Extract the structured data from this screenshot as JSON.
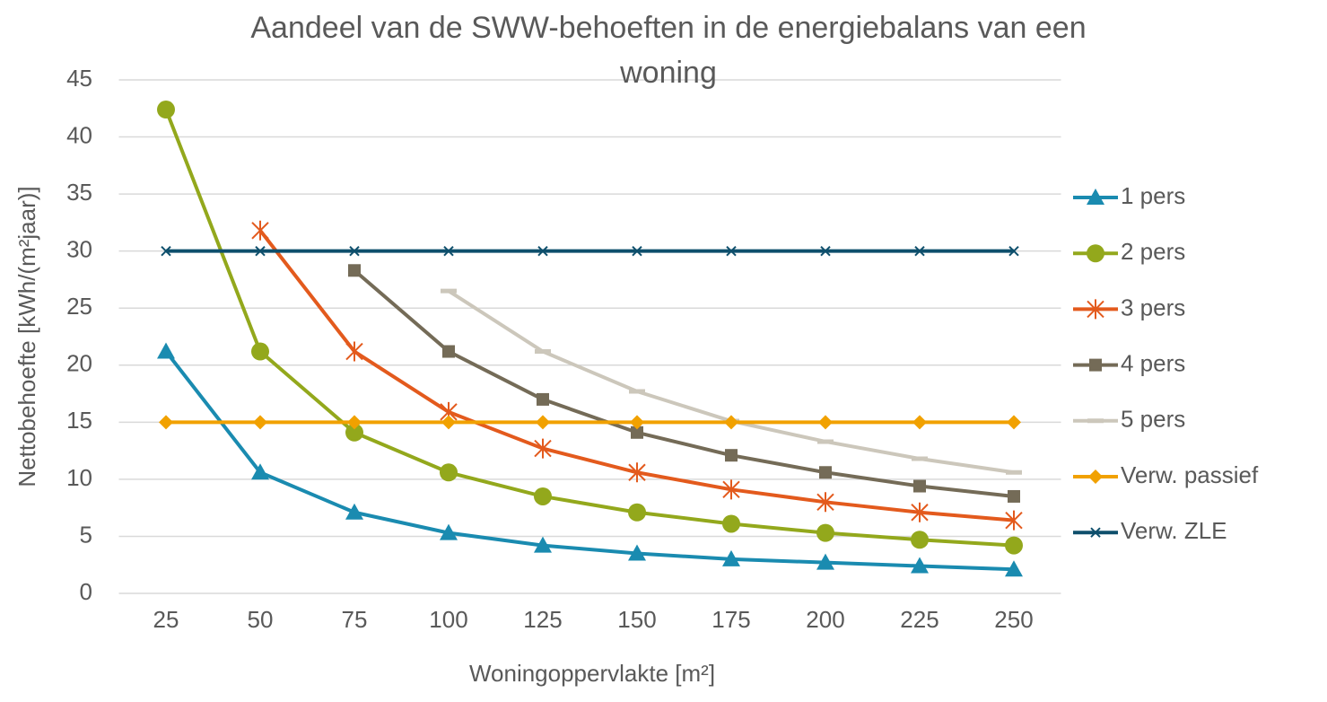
{
  "chart_data": {
    "type": "line",
    "title": "Aandeel van de SWW-behoeften in de energiebalans van een woning",
    "xlabel": "Woningoppervlakte [m²]",
    "ylabel": "Nettobehoefte [kWh/(m²jaar)]",
    "categories": [
      "25",
      "50",
      "75",
      "100",
      "125",
      "150",
      "175",
      "200",
      "225",
      "250"
    ],
    "ylim": [
      0,
      45
    ],
    "yticks": [
      0,
      5,
      10,
      15,
      20,
      25,
      30,
      35,
      40,
      45
    ],
    "grid": true,
    "legend": "right",
    "series": [
      {
        "name": "1 pers",
        "color": "#1a8bb0",
        "marker": "triangle",
        "values": [
          21.2,
          10.6,
          7.1,
          5.3,
          4.2,
          3.5,
          3.0,
          2.7,
          2.4,
          2.1
        ]
      },
      {
        "name": "2 pers",
        "color": "#93a81c",
        "marker": "circle",
        "values": [
          42.4,
          21.2,
          14.1,
          10.6,
          8.5,
          7.1,
          6.1,
          5.3,
          4.7,
          4.2
        ]
      },
      {
        "name": "3 pers",
        "color": "#e35a1d",
        "marker": "star",
        "values": [
          null,
          31.8,
          21.2,
          15.9,
          12.7,
          10.6,
          9.1,
          8.0,
          7.1,
          6.4
        ]
      },
      {
        "name": "4 pers",
        "color": "#746b57",
        "marker": "square",
        "values": [
          null,
          null,
          28.3,
          21.2,
          17.0,
          14.1,
          12.1,
          10.6,
          9.4,
          8.5
        ]
      },
      {
        "name": "5 pers",
        "color": "#ccc7bb",
        "marker": "dash",
        "values": [
          null,
          null,
          null,
          26.5,
          21.2,
          17.7,
          15.1,
          13.3,
          11.8,
          10.6
        ]
      },
      {
        "name": "Verw. passief",
        "color": "#f1a100",
        "marker": "diamond",
        "values": [
          15,
          15,
          15,
          15,
          15,
          15,
          15,
          15,
          15,
          15
        ]
      },
      {
        "name": "Verw. ZLE",
        "color": "#0e4f6c",
        "marker": "x",
        "values": [
          30,
          30,
          30,
          30,
          30,
          30,
          30,
          30,
          30,
          30
        ]
      }
    ]
  }
}
